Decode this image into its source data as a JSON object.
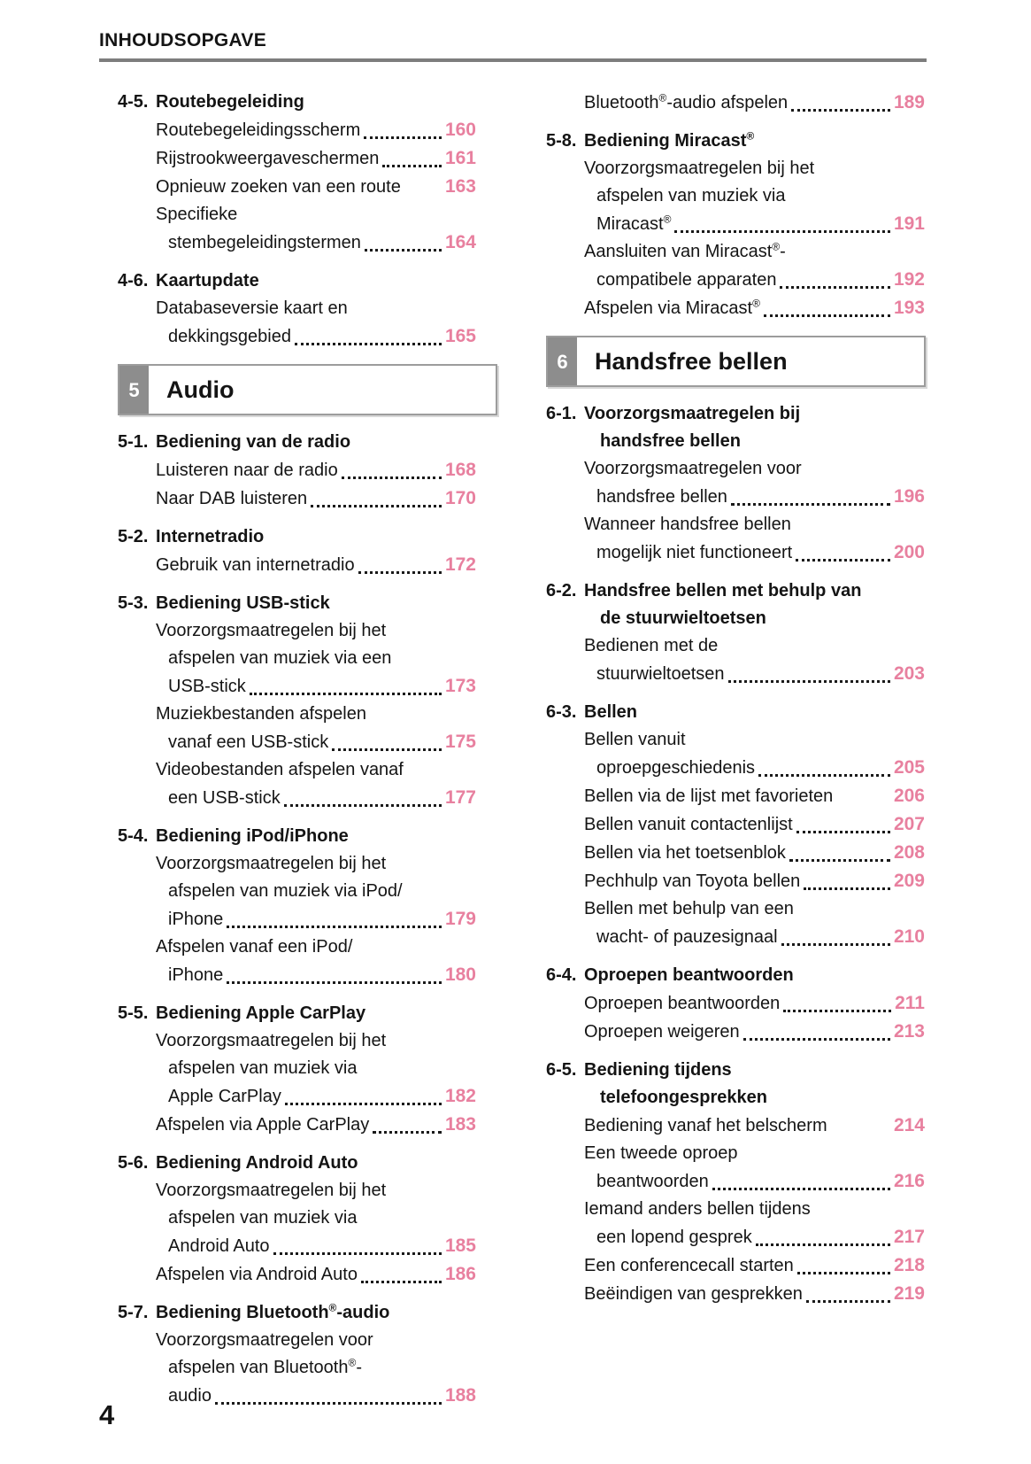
{
  "header": {
    "title": "INHOUDSOPGAVE"
  },
  "footer": {
    "page_number": "4"
  },
  "theme": {
    "accent_color": "#e8809f",
    "chapter_number_bg": "#8d8d8d",
    "rule_color": "#7d7d7d",
    "text_color": "#141414"
  },
  "columns": [
    {
      "blocks": [
        {
          "type": "section",
          "num": "4-5.",
          "title": [
            "Routebegeleiding"
          ]
        },
        {
          "type": "entry",
          "tail": "Routebegeleidingsscherm",
          "page": "160"
        },
        {
          "type": "entry",
          "tail": "Rijstrookweergaveschermen",
          "page": "161"
        },
        {
          "type": "entry",
          "tail": "Opnieuw zoeken van een route",
          "page": "163",
          "dots": false
        },
        {
          "type": "entry",
          "pre": [
            "Specifieke"
          ],
          "tail": "stembegeleidingstermen",
          "page": "164"
        },
        {
          "type": "section",
          "num": "4-6.",
          "title": [
            "Kaartupdate"
          ]
        },
        {
          "type": "entry",
          "pre": [
            "Databaseversie kaart en"
          ],
          "tail": "dekkingsgebied",
          "page": "165"
        },
        {
          "type": "chapter",
          "num": "5",
          "title": "Audio"
        },
        {
          "type": "section",
          "num": "5-1.",
          "title": [
            "Bediening van de radio"
          ]
        },
        {
          "type": "entry",
          "tail": "Luisteren naar de radio",
          "page": "168"
        },
        {
          "type": "entry",
          "tail": "Naar DAB luisteren",
          "page": "170"
        },
        {
          "type": "section",
          "num": "5-2.",
          "title": [
            "Internetradio"
          ]
        },
        {
          "type": "entry",
          "tail": "Gebruik van internetradio",
          "page": "172"
        },
        {
          "type": "section",
          "num": "5-3.",
          "title": [
            "Bediening USB-stick"
          ]
        },
        {
          "type": "entry",
          "pre": [
            "Voorzorgsmaatregelen bij het",
            "afspelen van muziek via een"
          ],
          "tail": "USB-stick",
          "page": "173"
        },
        {
          "type": "entry",
          "pre": [
            "Muziekbestanden afspelen"
          ],
          "tail": "vanaf een USB-stick",
          "page": "175"
        },
        {
          "type": "entry",
          "pre": [
            "Videobestanden afspelen vanaf"
          ],
          "tail": "een USB-stick",
          "page": "177"
        },
        {
          "type": "section",
          "num": "5-4.",
          "title": [
            "Bediening iPod/iPhone"
          ]
        },
        {
          "type": "entry",
          "pre": [
            "Voorzorgsmaatregelen bij het",
            "afspelen van muziek via iPod/"
          ],
          "tail": "iPhone",
          "page": "179"
        },
        {
          "type": "entry",
          "pre": [
            "Afspelen vanaf een iPod/"
          ],
          "tail": "iPhone",
          "page": "180"
        },
        {
          "type": "section",
          "num": "5-5.",
          "title": [
            "Bediening Apple CarPlay"
          ]
        },
        {
          "type": "entry",
          "pre": [
            "Voorzorgsmaatregelen bij het",
            "afspelen van muziek via"
          ],
          "tail": "Apple CarPlay",
          "page": "182"
        },
        {
          "type": "entry",
          "tail": "Afspelen via Apple CarPlay",
          "page": "183"
        },
        {
          "type": "section",
          "num": "5-6.",
          "title": [
            "Bediening Android Auto"
          ]
        },
        {
          "type": "entry",
          "pre": [
            "Voorzorgsmaatregelen bij het",
            "afspelen van muziek via"
          ],
          "tail": "Android Auto",
          "page": "185"
        },
        {
          "type": "entry",
          "tail": "Afspelen via Android Auto",
          "page": "186"
        },
        {
          "type": "section",
          "num": "5-7.",
          "title": [
            "Bediening Bluetooth®-audio"
          ]
        },
        {
          "type": "entry",
          "pre": [
            "Voorzorgsmaatregelen voor",
            "afspelen van Bluetooth®-"
          ],
          "tail": "audio",
          "page": "188"
        }
      ]
    },
    {
      "blocks": [
        {
          "type": "entry",
          "tail": "Bluetooth®-audio afspelen",
          "page": "189"
        },
        {
          "type": "section",
          "num": "5-8.",
          "title": [
            "Bediening Miracast®"
          ]
        },
        {
          "type": "entry",
          "pre": [
            "Voorzorgsmaatregelen bij het",
            "afspelen van muziek via"
          ],
          "tail": "Miracast®",
          "page": "191"
        },
        {
          "type": "entry",
          "pre": [
            "Aansluiten van Miracast®-"
          ],
          "tail": "compatibele apparaten",
          "page": "192"
        },
        {
          "type": "entry",
          "tail": "Afspelen via Miracast®",
          "page": "193"
        },
        {
          "type": "chapter",
          "num": "6",
          "title": "Handsfree bellen"
        },
        {
          "type": "section",
          "num": "6-1.",
          "title": [
            "Voorzorgsmaatregelen bij",
            "handsfree bellen"
          ]
        },
        {
          "type": "entry",
          "pre": [
            "Voorzorgsmaatregelen voor"
          ],
          "tail": "handsfree bellen",
          "page": "196"
        },
        {
          "type": "entry",
          "pre": [
            "Wanneer handsfree bellen"
          ],
          "tail": "mogelijk niet functioneert",
          "page": "200"
        },
        {
          "type": "section",
          "num": "6-2.",
          "title": [
            "Handsfree bellen met behulp van",
            "de stuurwieltoetsen"
          ]
        },
        {
          "type": "entry",
          "pre": [
            "Bedienen met de"
          ],
          "tail": "stuurwieltoetsen",
          "page": "203"
        },
        {
          "type": "section",
          "num": "6-3.",
          "title": [
            "Bellen"
          ]
        },
        {
          "type": "entry",
          "pre": [
            "Bellen vanuit"
          ],
          "tail": "oproepgeschiedenis",
          "page": "205"
        },
        {
          "type": "entry",
          "tail": "Bellen via de lijst met favorieten",
          "page": "206",
          "dots": false
        },
        {
          "type": "entry",
          "tail": "Bellen vanuit contactenlijst",
          "page": "207"
        },
        {
          "type": "entry",
          "tail": "Bellen via het toetsenblok",
          "page": "208"
        },
        {
          "type": "entry",
          "tail": "Pechhulp van Toyota bellen",
          "page": "209"
        },
        {
          "type": "entry",
          "pre": [
            "Bellen met behulp van een"
          ],
          "tail": "wacht- of pauzesignaal",
          "page": "210"
        },
        {
          "type": "section",
          "num": "6-4.",
          "title": [
            "Oproepen beantwoorden"
          ]
        },
        {
          "type": "entry",
          "tail": "Oproepen beantwoorden",
          "page": "211"
        },
        {
          "type": "entry",
          "tail": "Oproepen weigeren",
          "page": "213"
        },
        {
          "type": "section",
          "num": "6-5.",
          "title": [
            "Bediening tijdens",
            "telefoongesprekken"
          ]
        },
        {
          "type": "entry",
          "tail": "Bediening vanaf het belscherm",
          "page": "214",
          "dots": false
        },
        {
          "type": "entry",
          "pre": [
            "Een tweede oproep"
          ],
          "tail": "beantwoorden",
          "page": "216"
        },
        {
          "type": "entry",
          "pre": [
            "Iemand anders bellen tijdens"
          ],
          "tail": "een lopend gesprek",
          "page": "217"
        },
        {
          "type": "entry",
          "tail": "Een conferencecall starten",
          "page": "218"
        },
        {
          "type": "entry",
          "tail": "Beëindigen van gesprekken",
          "page": "219"
        }
      ]
    }
  ]
}
